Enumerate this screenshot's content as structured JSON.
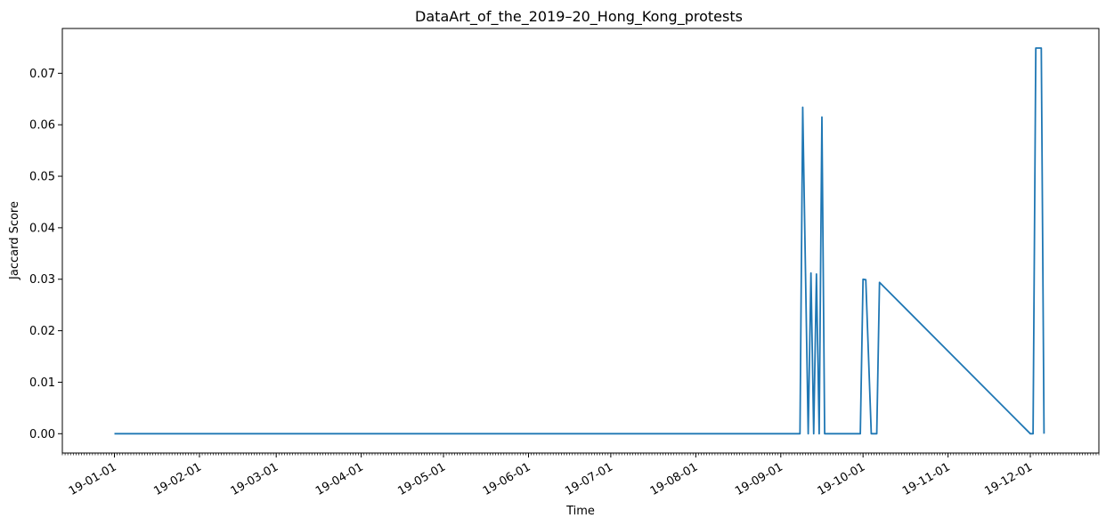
{
  "chart_data": {
    "type": "line",
    "title": "DataArt_of_the_2019–20_Hong_Kong_protests",
    "xlabel": "Time",
    "ylabel": "Jaccard Score",
    "x_is_date": true,
    "xlim": [
      "2018-12-13",
      "2019-12-26"
    ],
    "ylim": [
      -0.00375,
      0.0787
    ],
    "y_ticks": [
      0.0,
      0.01,
      0.02,
      0.03,
      0.04,
      0.05,
      0.06,
      0.07
    ],
    "y_tick_labels": [
      "0.00",
      "0.01",
      "0.02",
      "0.03",
      "0.04",
      "0.05",
      "0.06",
      "0.07"
    ],
    "x_ticks": [
      "2019-01-01",
      "2019-02-01",
      "2019-03-01",
      "2019-04-01",
      "2019-05-01",
      "2019-06-01",
      "2019-07-01",
      "2019-08-01",
      "2019-09-01",
      "2019-10-01",
      "2019-11-01",
      "2019-12-01"
    ],
    "x_tick_labels": [
      "19-01-01",
      "19-02-01",
      "19-03-01",
      "19-04-01",
      "19-05-01",
      "19-06-01",
      "19-07-01",
      "19-08-01",
      "19-09-01",
      "19-10-01",
      "19-11-01",
      "19-12-01"
    ],
    "minor_ticks": "daily",
    "grid": false,
    "line_color": "#1f77b4",
    "series": [
      {
        "x": [
          "2019-01-01",
          "2019-09-08",
          "2019-09-09",
          "2019-09-11",
          "2019-09-12",
          "2019-09-13",
          "2019-09-14",
          "2019-09-15",
          "2019-09-16",
          "2019-09-17",
          "2019-09-18",
          "2019-09-30",
          "2019-10-01",
          "2019-10-02",
          "2019-10-04",
          "2019-10-06",
          "2019-10-07",
          "2019-12-01",
          "2019-12-02",
          "2019-12-03",
          "2019-12-05",
          "2019-12-06"
        ],
        "y": [
          0.0,
          0.0,
          0.0634,
          0.0,
          0.0312,
          0.0,
          0.031,
          0.0,
          0.0615,
          0.0,
          0.0,
          0.0,
          0.03,
          0.0299,
          0.0,
          0.0,
          0.0294,
          0.0,
          0.0,
          0.0749,
          0.0749,
          0.0
        ]
      }
    ]
  }
}
